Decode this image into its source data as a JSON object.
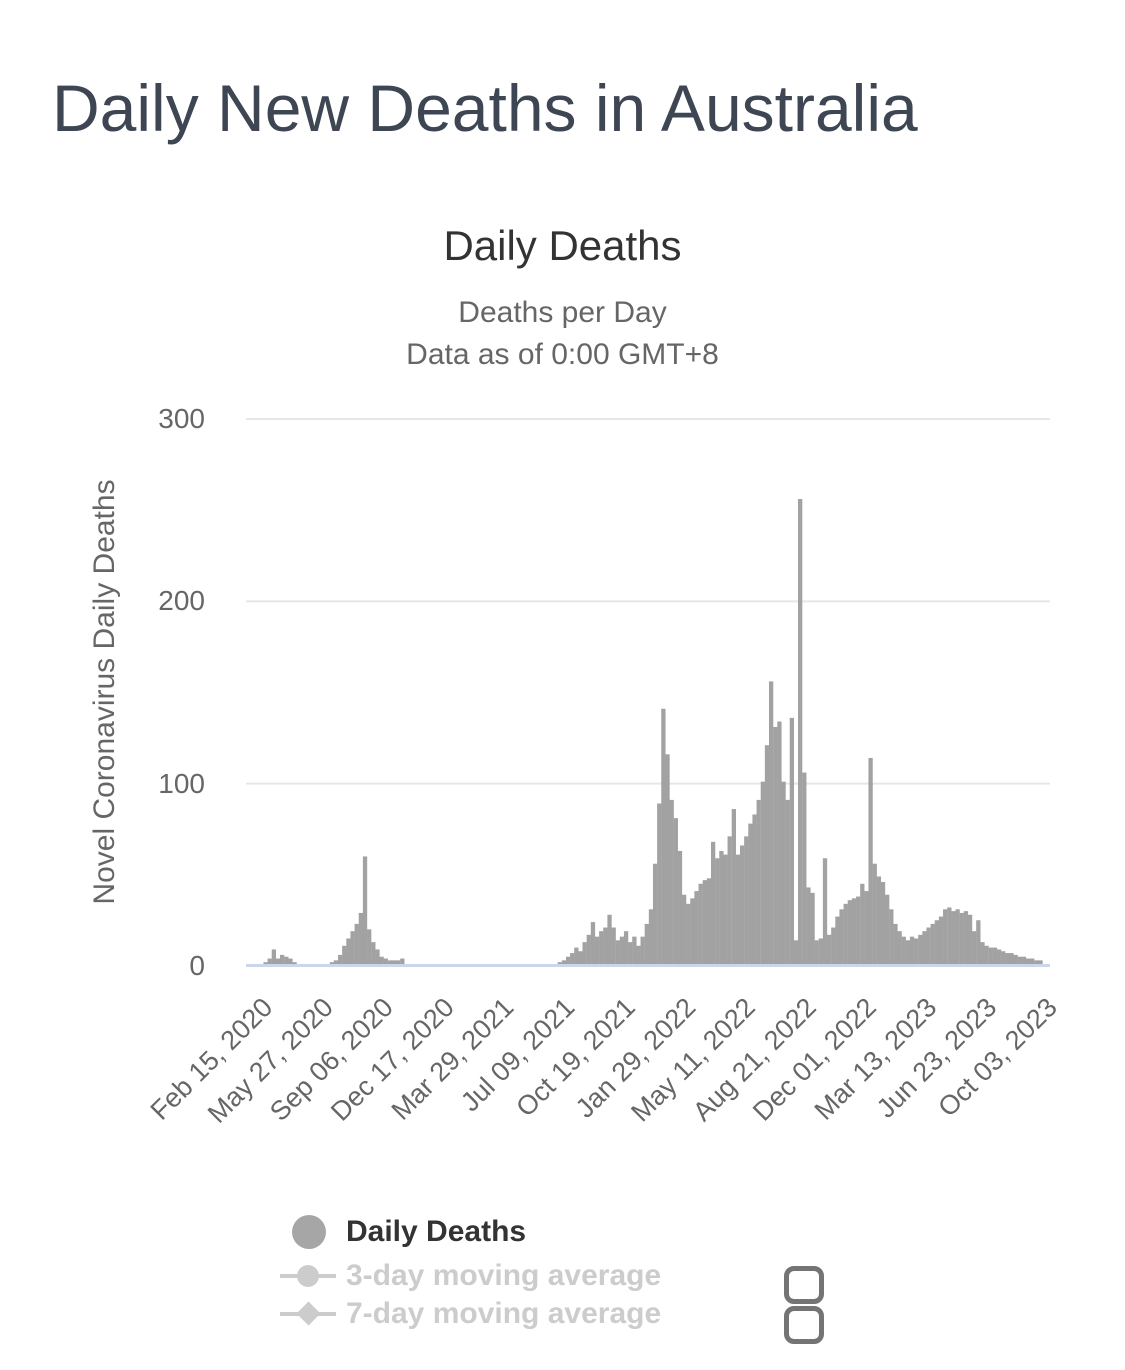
{
  "page": {
    "title": "Daily New Deaths in Australia"
  },
  "chart": {
    "title": "Daily Deaths",
    "subtitle1": "Deaths per Day",
    "subtitle2": "Data as of 0:00 GMT+8",
    "yaxis_title": "Novel Coronavirus Daily Deaths"
  },
  "legend": {
    "items": [
      {
        "label": "Daily Deaths",
        "marker": "circle",
        "active": true
      },
      {
        "label": "3-day moving average",
        "marker": "line-circle",
        "active": false
      },
      {
        "label": "7-day moving average",
        "marker": "line-diamond",
        "active": false
      }
    ]
  },
  "colors": {
    "bar": "#a2a2a2",
    "axis_line": "#ccd6eb",
    "gridline": "#e6e6e6",
    "tick_text": "#666666",
    "title_text": "#333333",
    "heading_text": "#3e4653",
    "legend_active": "#333333",
    "legend_disabled": "#cccccc",
    "checkbox_border": "#747474"
  },
  "chart_data": {
    "type": "bar",
    "title": "Daily Deaths",
    "subtitle": [
      "Deaths per Day",
      "Data as of 0:00 GMT+8"
    ],
    "series_name": "Daily Deaths",
    "ylabel": "Novel Coronavirus Daily Deaths",
    "ylim": [
      0,
      300
    ],
    "yticks": [
      0,
      100,
      200,
      300
    ],
    "grid": "horizontal",
    "legend_position": "bottom-left",
    "xtick_labels": [
      "Feb 15, 2020",
      "May 27, 2020",
      "Sep 06, 2020",
      "Dec 17, 2020",
      "Mar 29, 2021",
      "Jul 09, 2021",
      "Oct 19, 2021",
      "Jan 29, 2022",
      "May 11, 2022",
      "Aug 21, 2022",
      "Dec 01, 2022",
      "Mar 13, 2023",
      "Jun 23, 2023",
      "Oct 03, 2023"
    ],
    "sampling": "weekly",
    "start_date": "Feb 15, 2020",
    "notable_points": {
      "max_value": 255,
      "peak_2020": 59,
      "peak_jan_2022": 140,
      "peak_jul_2022": 155,
      "peak_jan_2023": 113
    },
    "values": [
      0,
      0,
      0,
      0,
      1,
      3,
      8,
      3,
      5,
      4,
      3,
      1,
      0,
      0,
      0,
      0,
      0,
      0,
      0,
      0,
      1,
      2,
      5,
      10,
      14,
      18,
      22,
      28,
      59,
      19,
      12,
      8,
      4,
      3,
      2,
      2,
      2,
      3,
      0,
      0,
      0,
      0,
      0,
      0,
      0,
      0,
      0,
      0,
      0,
      0,
      0,
      0,
      0,
      0,
      0,
      0,
      0,
      0,
      0,
      0,
      0,
      0,
      0,
      0,
      0,
      0,
      0,
      0,
      0,
      0,
      0,
      0,
      0,
      0,
      0,
      1,
      2,
      4,
      6,
      9,
      7,
      12,
      16,
      23,
      15,
      18,
      20,
      27,
      20,
      13,
      15,
      18,
      12,
      15,
      10,
      15,
      22,
      30,
      55,
      88,
      140,
      115,
      90,
      80,
      62,
      38,
      33,
      36,
      40,
      44,
      46,
      47,
      67,
      58,
      62,
      60,
      70,
      85,
      60,
      65,
      70,
      77,
      82,
      90,
      100,
      120,
      155,
      130,
      133,
      100,
      90,
      135,
      13,
      255,
      105,
      42,
      39,
      13,
      14,
      58,
      16,
      20,
      26,
      30,
      33,
      35,
      36,
      37,
      44,
      40,
      113,
      55,
      48,
      45,
      38,
      30,
      22,
      18,
      15,
      13,
      15,
      14,
      16,
      18,
      20,
      22,
      24,
      26,
      30,
      31,
      29,
      30,
      28,
      29,
      27,
      18,
      24,
      12,
      10,
      9,
      9,
      8,
      7,
      6,
      6,
      5,
      4,
      4,
      3,
      3,
      2,
      2
    ]
  }
}
